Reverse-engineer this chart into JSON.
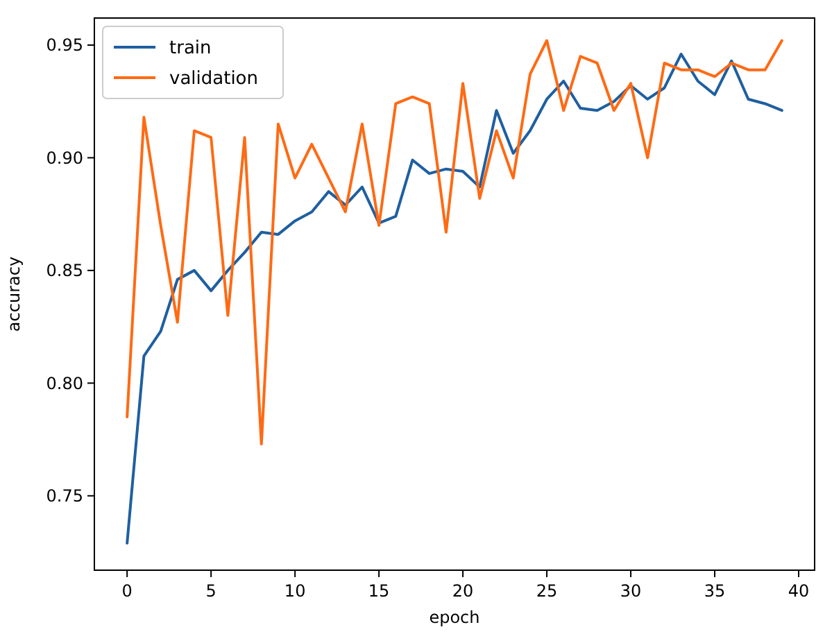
{
  "chart_data": {
    "type": "line",
    "xlabel": "epoch",
    "ylabel": "accuracy",
    "x": [
      0,
      1,
      2,
      3,
      4,
      5,
      6,
      7,
      8,
      9,
      10,
      11,
      12,
      13,
      14,
      15,
      16,
      17,
      18,
      19,
      20,
      21,
      22,
      23,
      24,
      25,
      26,
      27,
      28,
      29,
      30,
      31,
      32,
      33,
      34,
      35,
      36,
      37,
      38,
      39
    ],
    "xlim": [
      -1.95,
      40.95
    ],
    "xticks": [
      0,
      5,
      10,
      15,
      20,
      25,
      30,
      35,
      40
    ],
    "ylim": [
      0.717,
      0.962
    ],
    "yticks": [
      {
        "value": 0.75,
        "label": "0.75"
      },
      {
        "value": 0.8,
        "label": "0.80"
      },
      {
        "value": 0.85,
        "label": "0.85"
      },
      {
        "value": 0.9,
        "label": "0.90"
      },
      {
        "value": 0.95,
        "label": "0.95"
      }
    ],
    "grid": false,
    "legend": "top left",
    "marker": "none",
    "line_style": "solid",
    "series": [
      {
        "name": "train",
        "color": "#1f5fa0",
        "values": [
          0.729,
          0.812,
          0.823,
          0.846,
          0.85,
          0.841,
          0.85,
          0.858,
          0.867,
          0.866,
          0.872,
          0.876,
          0.885,
          0.879,
          0.887,
          0.871,
          0.874,
          0.899,
          0.893,
          0.895,
          0.894,
          0.887,
          0.921,
          0.902,
          0.912,
          0.926,
          0.934,
          0.922,
          0.921,
          0.925,
          0.932,
          0.926,
          0.931,
          0.946,
          0.934,
          0.928,
          0.943,
          0.926,
          0.924,
          0.921
        ]
      },
      {
        "name": "validation",
        "color": "#ff6a13",
        "values": [
          0.785,
          0.918,
          0.87,
          0.827,
          0.912,
          0.909,
          0.83,
          0.909,
          0.773,
          0.915,
          0.891,
          0.906,
          0.891,
          0.876,
          0.915,
          0.87,
          0.924,
          0.927,
          0.924,
          0.867,
          0.933,
          0.882,
          0.912,
          0.891,
          0.937,
          0.952,
          0.921,
          0.945,
          0.942,
          0.921,
          0.933,
          0.9,
          0.942,
          0.939,
          0.939,
          0.936,
          0.942,
          0.939,
          0.939,
          0.952
        ]
      }
    ]
  }
}
